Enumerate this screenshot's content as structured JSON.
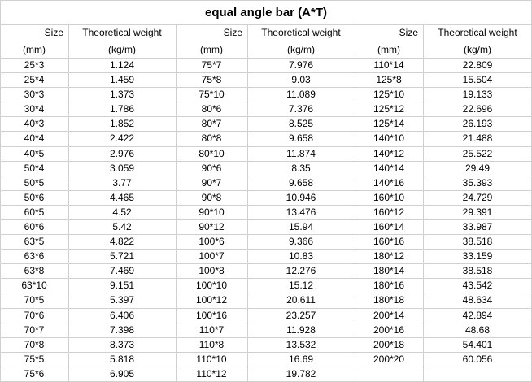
{
  "table": {
    "title": "equal angle bar (A*T)",
    "header": [
      [
        "Size",
        "Theoretical weight",
        "Size",
        "Theoretical weight",
        "Size",
        "Theoretical weight"
      ],
      [
        "(mm)",
        "(kg/m)",
        "(mm)",
        "(kg/m)",
        "(mm)",
        "(kg/m)"
      ]
    ],
    "rows": [
      [
        "25*3",
        "1.124",
        "75*7",
        "7.976",
        "110*14",
        "22.809"
      ],
      [
        "25*4",
        "1.459",
        "75*8",
        "9.03",
        "125*8",
        "15.504"
      ],
      [
        "30*3",
        "1.373",
        "75*10",
        "11.089",
        "125*10",
        "19.133"
      ],
      [
        "30*4",
        "1.786",
        "80*6",
        "7.376",
        "125*12",
        "22.696"
      ],
      [
        "40*3",
        "1.852",
        "80*7",
        "8.525",
        "125*14",
        "26.193"
      ],
      [
        "40*4",
        "2.422",
        "80*8",
        "9.658",
        "140*10",
        "21.488"
      ],
      [
        "40*5",
        "2.976",
        "80*10",
        "11.874",
        "140*12",
        "25.522"
      ],
      [
        "50*4",
        "3.059",
        "90*6",
        "8.35",
        "140*14",
        "29.49"
      ],
      [
        "50*5",
        "3.77",
        "90*7",
        "9.658",
        "140*16",
        "35.393"
      ],
      [
        "50*6",
        "4.465",
        "90*8",
        "10.946",
        "160*10",
        "24.729"
      ],
      [
        "60*5",
        "4.52",
        "90*10",
        "13.476",
        "160*12",
        "29.391"
      ],
      [
        "60*6",
        "5.42",
        "90*12",
        "15.94",
        "160*14",
        "33.987"
      ],
      [
        "63*5",
        "4.822",
        "100*6",
        "9.366",
        "160*16",
        "38.518"
      ],
      [
        "63*6",
        "5.721",
        "100*7",
        "10.83",
        "180*12",
        "33.159"
      ],
      [
        "63*8",
        "7.469",
        "100*8",
        "12.276",
        "180*14",
        "38.518"
      ],
      [
        "63*10",
        "9.151",
        "100*10",
        "15.12",
        "180*16",
        "43.542"
      ],
      [
        "70*5",
        "5.397",
        "100*12",
        "20.611",
        "180*18",
        "48.634"
      ],
      [
        "70*6",
        "6.406",
        "100*16",
        "23.257",
        "200*14",
        "42.894"
      ],
      [
        "70*7",
        "7.398",
        "110*7",
        "11.928",
        "200*16",
        "48.68"
      ],
      [
        "70*8",
        "8.373",
        "110*8",
        "13.532",
        "200*18",
        "54.401"
      ],
      [
        "75*5",
        "5.818",
        "110*10",
        "16.69",
        "200*20",
        "60.056"
      ],
      [
        "75*6",
        "6.905",
        "110*12",
        "19.782"
      ]
    ]
  }
}
